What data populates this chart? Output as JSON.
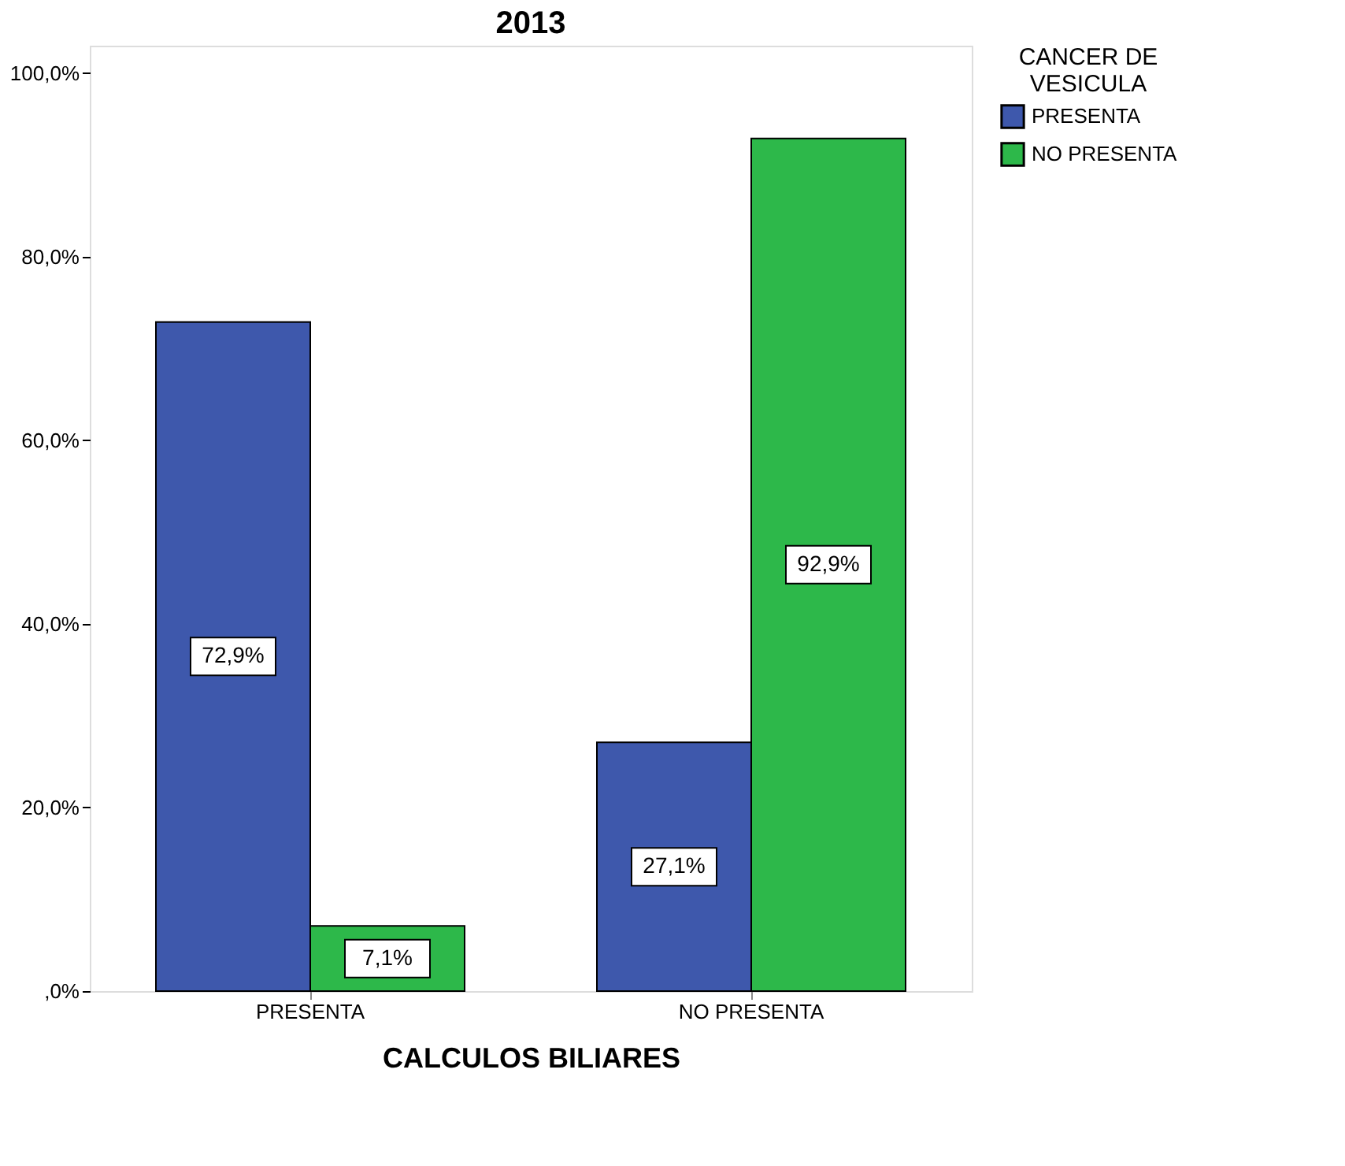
{
  "chart_data": {
    "type": "bar",
    "title": "2013",
    "xlabel": "CALCULOS BILIARES",
    "legend_title": "CANCER DE VESICULA",
    "categories": [
      "PRESENTA",
      "NO PRESENTA"
    ],
    "series": [
      {
        "name": "PRESENTA",
        "color": "#3e58ac",
        "values": [
          72.9,
          27.1
        ]
      },
      {
        "name": "NO PRESENTA",
        "color": "#2db84a",
        "values": [
          7.1,
          92.9
        ]
      }
    ],
    "value_labels": [
      [
        "72,9%",
        "27,1%"
      ],
      [
        "7,1%",
        "92,9%"
      ]
    ],
    "ylim": [
      0,
      103
    ],
    "yticks": [
      {
        "value": 0,
        "label": ",0%"
      },
      {
        "value": 20,
        "label": "20,0%"
      },
      {
        "value": 40,
        "label": "40,0%"
      },
      {
        "value": 60,
        "label": "60,0%"
      },
      {
        "value": 80,
        "label": "80,0%"
      },
      {
        "value": 100,
        "label": "100,0%"
      }
    ],
    "grid": false,
    "legend": "top right"
  }
}
